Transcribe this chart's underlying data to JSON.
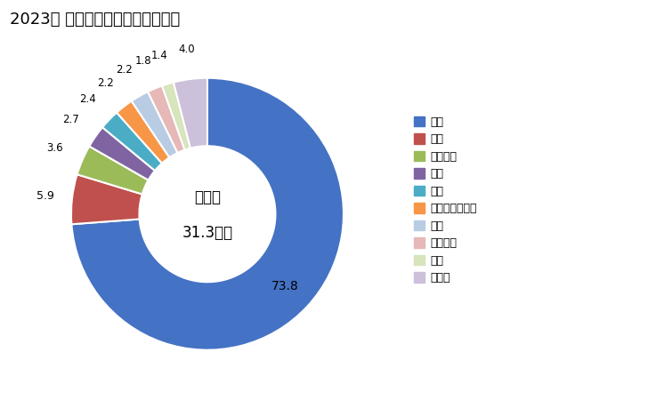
{
  "title": "2023年 輸出相手国のシェア（％）",
  "center_text_line1": "総　額",
  "center_text_line2": "31.3億円",
  "labels": [
    "中国",
    "香港",
    "ベトナム",
    "タイ",
    "米国",
    "バングラデシュ",
    "台湾",
    "モロッコ",
    "英国",
    "その他"
  ],
  "values": [
    73.8,
    5.9,
    3.6,
    2.7,
    2.4,
    2.2,
    2.2,
    1.8,
    1.4,
    4.0
  ],
  "colors": [
    "#4472C4",
    "#C0504D",
    "#9BBB59",
    "#8064A2",
    "#4BACC6",
    "#F79646",
    "#B8CCE4",
    "#E6B8B7",
    "#D7E4BC",
    "#CCC0DA"
  ],
  "title_fontsize": 13,
  "legend_fontsize": 9,
  "background_color": "#DCE6F1"
}
